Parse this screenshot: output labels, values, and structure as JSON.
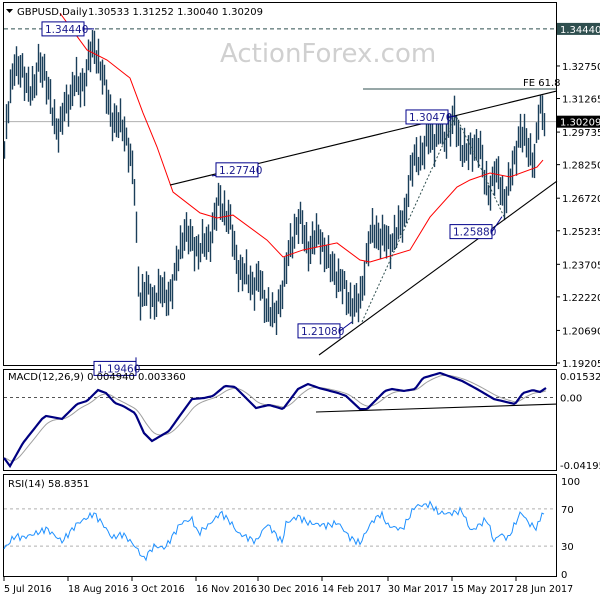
{
  "header": {
    "symbol": "GBPUSD,Daily",
    "ohlc": "1.30533 1.31252 1.30040 1.30209"
  },
  "watermark": "ActionForex.com",
  "colors": {
    "bars": "#1b3f5a",
    "ma": "#ff0000",
    "macd": "#000080",
    "signal": "#a0a0a0",
    "rsi": "#1e90ff",
    "label_border": "#00008b",
    "current_price_bg": "#000000",
    "level_bg": "#2f4f4f"
  },
  "chart_data": [
    {
      "type": "bar",
      "title": "GBPUSD,Daily",
      "x_tick_labels": [
        "5 Jul 2016",
        "18 Aug 2016",
        "3 Oct 2016",
        "16 Nov 2016",
        "30 Dec 2016",
        "14 Feb 2017",
        "30 Mar 2017",
        "15 May 2017",
        "28 Jun 2017"
      ],
      "x_tick_bars": [
        0,
        32,
        64,
        96,
        127,
        159,
        192,
        224,
        256
      ],
      "y_ticks": [
        "1.32750",
        "1.31265",
        "1.29735",
        "1.28250",
        "1.26720",
        "1.25235",
        "1.23705",
        "1.22220",
        "1.20690",
        "1.19205"
      ],
      "ylim": [
        1.19205,
        1.3576
      ],
      "current_price": "1.30209",
      "level_price": "1.34440",
      "close_series": [
        1.2892,
        1.312,
        1.3302,
        1.3257,
        1.3211,
        1.3188,
        1.3165,
        1.3302,
        1.3257,
        1.312,
        1.3029,
        1.2983,
        1.3074,
        1.312,
        1.3211,
        1.3165,
        1.3211,
        1.3325,
        1.3348,
        1.3302,
        1.3188,
        1.3074,
        1.3029,
        1.3006,
        1.2983,
        1.2892,
        1.2709,
        1.2208,
        1.2253,
        1.2231,
        1.2208,
        1.2253,
        1.2231,
        1.2231,
        1.2299,
        1.2436,
        1.2527,
        1.2481,
        1.2459,
        1.2436,
        1.2459,
        1.2481,
        1.2573,
        1.2664,
        1.2618,
        1.2573,
        1.2436,
        1.2345,
        1.2322,
        1.2299,
        1.2276,
        1.2299,
        1.2208,
        1.2162,
        1.2117,
        1.2208,
        1.2299,
        1.2436,
        1.2527,
        1.2573,
        1.2504,
        1.2436,
        1.2481,
        1.2504,
        1.2436,
        1.2367,
        1.2345,
        1.2299,
        1.2253,
        1.2208,
        1.2185,
        1.2185,
        1.2345,
        1.2481,
        1.2527,
        1.2504,
        1.2481,
        1.2459,
        1.2504,
        1.2527,
        1.2595,
        1.2755,
        1.2846,
        1.2869,
        1.2892,
        1.296,
        1.2937,
        1.2983,
        1.2937,
        1.3006,
        1.3029,
        1.2937,
        1.2892,
        1.2869,
        1.2915,
        1.2915,
        1.2755,
        1.2709,
        1.2778,
        1.2755,
        1.2664,
        1.2732,
        1.2846,
        1.2983,
        1.2937,
        1.2892,
        1.2846,
        1.3074,
        1.3051
      ],
      "moving_average": [
        [
          28,
          1.3516
        ],
        [
          41.5,
          1.3348
        ],
        [
          51.5,
          1.3302
        ],
        [
          63,
          1.322
        ],
        [
          69.5,
          1.3061
        ],
        [
          76.5,
          1.2906
        ],
        [
          84.5,
          1.27
        ],
        [
          98,
          1.2605
        ],
        [
          106.5,
          1.2582
        ],
        [
          114.5,
          1.2595
        ],
        [
          131.5,
          1.2481
        ],
        [
          139.5,
          1.2404
        ],
        [
          149.5,
          1.2436
        ],
        [
          166.5,
          1.2468
        ],
        [
          178,
          1.239
        ],
        [
          183,
          1.2381
        ],
        [
          191.5,
          1.2404
        ],
        [
          203,
          1.2436
        ],
        [
          213,
          1.2586
        ],
        [
          226.5,
          1.2723
        ],
        [
          233,
          1.2755
        ],
        [
          243,
          1.2787
        ],
        [
          253,
          1.2769
        ],
        [
          266.5,
          1.2814
        ],
        [
          269.5,
          1.2846
        ]
      ],
      "pivot_labels": [
        {
          "text": "1.34440",
          "bar": 45,
          "price": 1.3444
        },
        {
          "text": "1.19460",
          "bar": 66,
          "price": 1.1946
        },
        {
          "text": "1.27740",
          "bar": 104,
          "price": 1.2774
        },
        {
          "text": "1.21080",
          "bar": 174,
          "price": 1.2108
        },
        {
          "text": "1.30470",
          "bar": 226,
          "price": 1.3047
        },
        {
          "text": "1.25880",
          "bar": 249,
          "price": 1.2588
        }
      ],
      "annotations": {
        "fe_label": "FE 61.8",
        "fe_price": 1.317,
        "fe_start_bar": 179.5,
        "upper_trendline": [
          [
            83,
            1.2732
          ],
          [
            276.5,
            1.3161
          ]
        ],
        "lower_trendline": [
          [
            157.5,
            1.1957
          ],
          [
            276.5,
            1.275
          ]
        ],
        "fib_path": [
          [
            179,
            1.2108
          ],
          [
            226,
            1.3047
          ],
          [
            250,
            1.2588
          ]
        ]
      }
    },
    {
      "type": "line",
      "title": "MACD(12,26,9) 0.004940 0.003360",
      "y_ticks": [
        "0.015325",
        "0.00",
        "-0.041957"
      ],
      "ylim": [
        -0.041957,
        0.015325
      ],
      "macd": [
        [
          0,
          -0.035
        ],
        [
          3,
          -0.0397
        ],
        [
          9.5,
          -0.0263
        ],
        [
          19,
          -0.0124
        ],
        [
          21,
          -0.0107
        ],
        [
          29,
          -0.0124
        ],
        [
          36.5,
          -0.0038
        ],
        [
          41.5,
          -0.002
        ],
        [
          47,
          0.0043
        ],
        [
          51,
          0.0026
        ],
        [
          55.5,
          -0.0032
        ],
        [
          59.5,
          -0.0049
        ],
        [
          65.5,
          -0.009
        ],
        [
          70,
          -0.0206
        ],
        [
          74,
          -0.0252
        ],
        [
          82.5,
          -0.0194
        ],
        [
          88.5,
          -0.0096
        ],
        [
          94,
          -0.0009
        ],
        [
          100,
          -0.0003
        ],
        [
          104.5,
          0.0009
        ],
        [
          110.5,
          0.0067
        ],
        [
          115.5,
          0.0061
        ],
        [
          121,
          -0.0003
        ],
        [
          126,
          -0.0061
        ],
        [
          132.5,
          -0.0043
        ],
        [
          139.5,
          -0.0067
        ],
        [
          147,
          0.0049
        ],
        [
          152,
          0.0078
        ],
        [
          157.5,
          0.0055
        ],
        [
          167,
          0.0026
        ],
        [
          171,
          0.0009
        ],
        [
          178,
          -0.0067
        ],
        [
          181.5,
          -0.0067
        ],
        [
          190.5,
          0.0038
        ],
        [
          194,
          0.0049
        ],
        [
          200,
          0.0038
        ],
        [
          205.5,
          0.0049
        ],
        [
          209.5,
          0.0113
        ],
        [
          218,
          0.0142
        ],
        [
          229,
          0.0096
        ],
        [
          236.5,
          0.0049
        ],
        [
          245,
          -0.0009
        ],
        [
          255.5,
          -0.0038
        ],
        [
          259.5,
          0.0026
        ],
        [
          264.5,
          0.0043
        ],
        [
          268,
          0.0032
        ],
        [
          271,
          0.0055
        ]
      ],
      "trendline": [
        [
          156,
          -0.0084
        ],
        [
          276.5,
          -0.0038
        ]
      ]
    },
    {
      "type": "line",
      "title": "RSI(14) 58.8351",
      "y_ticks": [
        "100",
        "70",
        "30",
        "0"
      ],
      "ylim": [
        0,
        100
      ],
      "levels": [
        70,
        30
      ],
      "rsi": [
        [
          0,
          27
        ],
        [
          5.5,
          41
        ],
        [
          9.5,
          39
        ],
        [
          19,
          46
        ],
        [
          21,
          49
        ],
        [
          29,
          35
        ],
        [
          36.5,
          54
        ],
        [
          45,
          65
        ],
        [
          50,
          52
        ],
        [
          54,
          39
        ],
        [
          59.5,
          43
        ],
        [
          65.5,
          30
        ],
        [
          70,
          16
        ],
        [
          75,
          30
        ],
        [
          80.5,
          28
        ],
        [
          88.5,
          55
        ],
        [
          94,
          59
        ],
        [
          97,
          44
        ],
        [
          102,
          52
        ],
        [
          108.5,
          66
        ],
        [
          113.5,
          55
        ],
        [
          117,
          44
        ],
        [
          126,
          35
        ],
        [
          131.5,
          54
        ],
        [
          139.5,
          33
        ],
        [
          140.5,
          54
        ],
        [
          147,
          62
        ],
        [
          152,
          55
        ],
        [
          161.5,
          52
        ],
        [
          167,
          55
        ],
        [
          173,
          39
        ],
        [
          178,
          33
        ],
        [
          183.5,
          55
        ],
        [
          188.5,
          65
        ],
        [
          192,
          52
        ],
        [
          199,
          48
        ],
        [
          202,
          59
        ],
        [
          205.5,
          73
        ],
        [
          213.5,
          75
        ],
        [
          217,
          66
        ],
        [
          223,
          65
        ],
        [
          229,
          68
        ],
        [
          233.5,
          46
        ],
        [
          241.5,
          59
        ],
        [
          245,
          35
        ],
        [
          248,
          43
        ],
        [
          252,
          38
        ],
        [
          258.5,
          67
        ],
        [
          262.5,
          54
        ],
        [
          266.5,
          49
        ],
        [
          269,
          66
        ],
        [
          270.5,
          60
        ]
      ]
    }
  ]
}
